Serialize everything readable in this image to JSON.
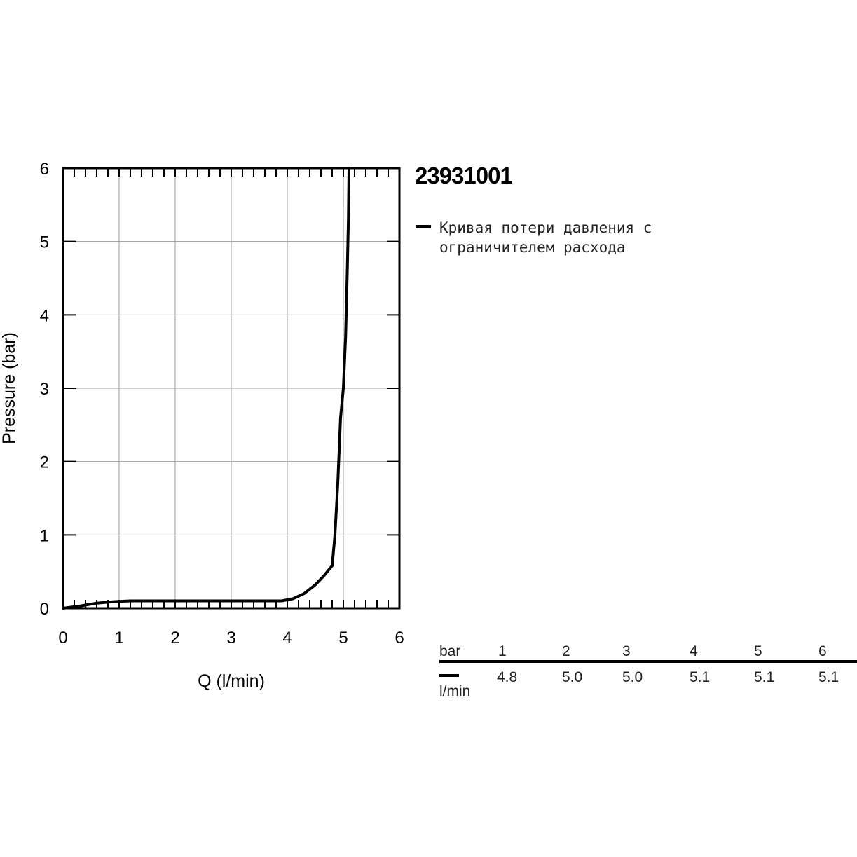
{
  "product": {
    "code": "23931001"
  },
  "legend": {
    "text": "Кривая потери давления с ограничителем расхода"
  },
  "table": {
    "header_unit": "bar",
    "row_unit": "l/min",
    "pressures": [
      "1",
      "2",
      "3",
      "4",
      "5",
      "6"
    ],
    "flows": [
      "4.8",
      "5.0",
      "5.0",
      "5.1",
      "5.1",
      "5.1"
    ]
  },
  "chart_data": {
    "type": "line",
    "xlabel": "Q (l/min)",
    "ylabel": "Pressure (bar)",
    "xlim": [
      0,
      6
    ],
    "ylim": [
      0,
      6
    ],
    "x_ticks": [
      "0",
      "1",
      "2",
      "3",
      "4",
      "5",
      "6"
    ],
    "y_ticks": [
      "0",
      "1",
      "2",
      "3",
      "4",
      "5",
      "6"
    ],
    "grid": true,
    "series": [
      {
        "name": "Кривая потери давления с ограничителем расхода",
        "color": "#000000",
        "points": [
          [
            0,
            0
          ],
          [
            0.3,
            0.03
          ],
          [
            0.6,
            0.07
          ],
          [
            0.9,
            0.09
          ],
          [
            1.2,
            0.1
          ],
          [
            2,
            0.1
          ],
          [
            3,
            0.1
          ],
          [
            3.9,
            0.1
          ],
          [
            4.1,
            0.13
          ],
          [
            4.3,
            0.2
          ],
          [
            4.5,
            0.32
          ],
          [
            4.65,
            0.44
          ],
          [
            4.8,
            0.58
          ],
          [
            4.85,
            1.0
          ],
          [
            4.9,
            1.7
          ],
          [
            4.95,
            2.6
          ],
          [
            5.0,
            3.0
          ],
          [
            5.04,
            3.7
          ],
          [
            5.07,
            4.6
          ],
          [
            5.09,
            5.3
          ],
          [
            5.1,
            6.0
          ]
        ]
      }
    ]
  }
}
